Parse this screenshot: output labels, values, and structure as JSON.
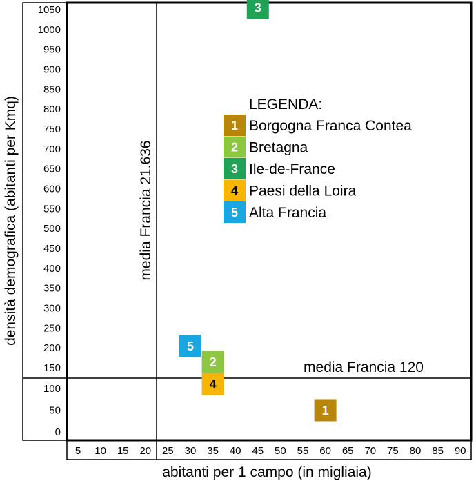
{
  "chart_data": {
    "type": "scatter",
    "xlabel": "abitanti per 1 campo (in migliaia)",
    "ylabel": "densità demografica (abitanti per Kmq)",
    "x_ticks": [
      "5",
      "10",
      "15",
      "20",
      "25",
      "30",
      "35",
      "40",
      "45",
      "50",
      "55",
      "60",
      "65",
      "70",
      "75",
      "80",
      "85",
      "90"
    ],
    "y_ticks": [
      "0",
      "50",
      "100",
      "150",
      "200",
      "250",
      "300",
      "350",
      "400",
      "450",
      "500",
      "550",
      "600",
      "650",
      "700",
      "750",
      "800",
      "850",
      "900",
      "950",
      "1000",
      "1050"
    ],
    "xlim": [
      0,
      92
    ],
    "ylim": [
      0,
      1070
    ],
    "grid": false,
    "legend_title": "LEGENDA:",
    "legend_position": "upper-center",
    "reference_lines": [
      {
        "orientation": "vertical",
        "x": 21.636,
        "label": "media Francia 21.636"
      },
      {
        "orientation": "horizontal",
        "y": 120,
        "label": "media Francia 120"
      }
    ],
    "points": [
      {
        "id": "1",
        "name": "Borgogna Franca Contea",
        "x": 60,
        "y": 50,
        "color": "#B8860B",
        "text_color": "#ffffff"
      },
      {
        "id": "2",
        "name": "Bretagna",
        "x": 35,
        "y": 165,
        "color": "#8DC63F",
        "text_color": "#ffffff"
      },
      {
        "id": "3",
        "name": "Ile-de-France",
        "x": 45,
        "y": 1055,
        "color": "#1FA256",
        "text_color": "#ffffff"
      },
      {
        "id": "4",
        "name": "Paesi della Loira",
        "x": 35,
        "y": 110,
        "color": "#F7B500",
        "text_color": "#000000"
      },
      {
        "id": "5",
        "name": "Alta Francia",
        "x": 30,
        "y": 205,
        "color": "#1AA7E1",
        "text_color": "#ffffff"
      }
    ]
  }
}
